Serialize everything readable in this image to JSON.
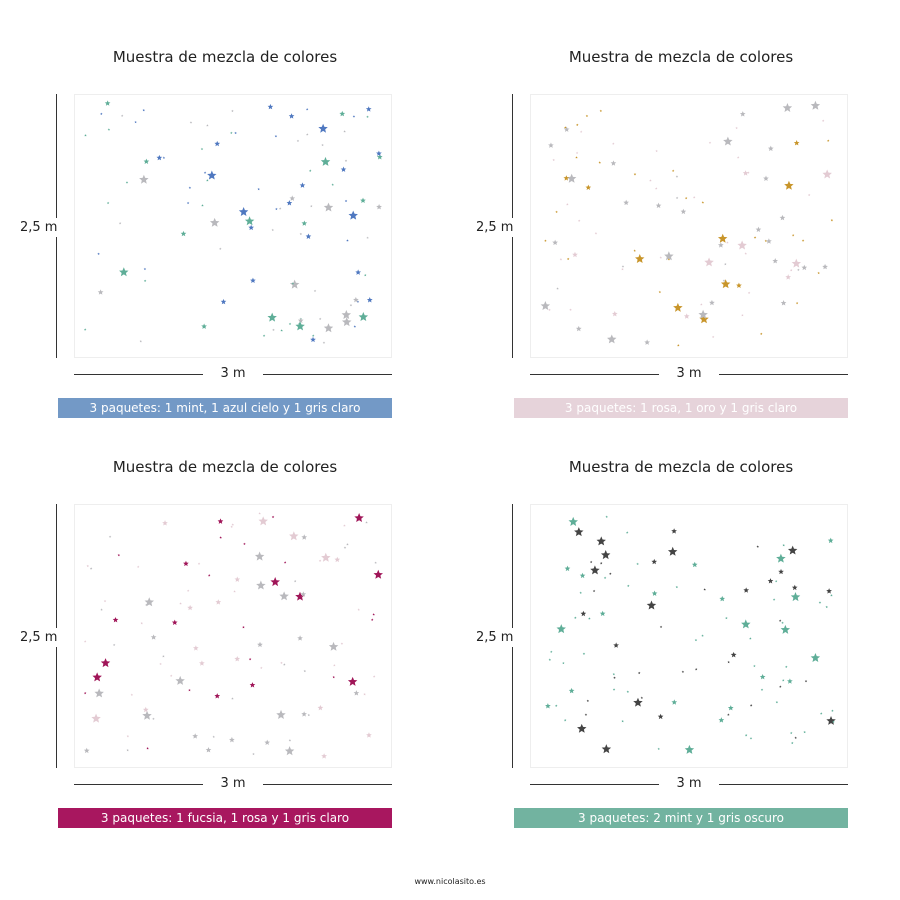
{
  "panels": [
    {
      "title": "Muestra de mezcla de colores",
      "height_label": "2,5 m",
      "width_label": "3 m",
      "banner": "3 paquetes: 1 mint, 1 azul cielo y 1 gris claro",
      "banner_color": "#7399c6",
      "star_colors": [
        "#5fae98",
        "#4f78c0",
        "#b9b9bd"
      ]
    },
    {
      "title": "Muestra de mezcla de colores",
      "height_label": "2,5 m",
      "width_label": "3 m",
      "banner": "3 paquetes: 1 rosa, 1 oro y 1 gris claro",
      "banner_color": "#e6d3da",
      "star_colors": [
        "#e3cbd3",
        "#c8952a",
        "#b9b9bd"
      ]
    },
    {
      "title": "Muestra de mezcla de colores",
      "height_label": "2,5 m",
      "width_label": "3 m",
      "banner": "3 paquetes: 1 fucsia, 1 rosa y 1 gris claro",
      "banner_color": "#a8175f",
      "star_colors": [
        "#a01558",
        "#e3cbd3",
        "#b9b9bd"
      ]
    },
    {
      "title": "Muestra de mezcla de colores",
      "height_label": "2,5 m",
      "width_label": "3 m",
      "banner": "3 paquetes: 2 mint y 1 gris oscuro",
      "banner_color": "#72b3a0",
      "star_colors": [
        "#5fae98",
        "#5fae98",
        "#444444"
      ]
    }
  ],
  "footer": "www.nicolasito.es"
}
